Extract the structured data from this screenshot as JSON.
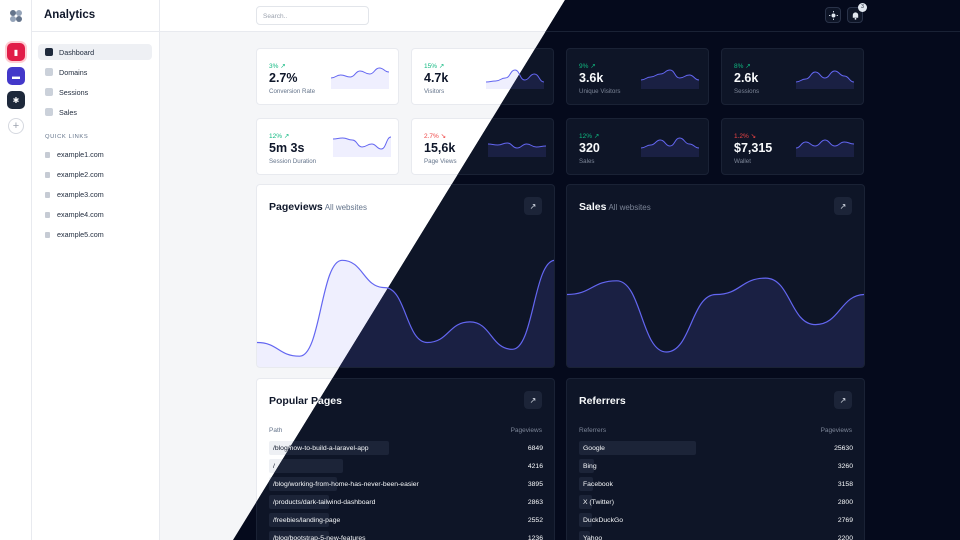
{
  "app": {
    "title": "Analytics"
  },
  "header": {
    "search_placeholder": "Search..",
    "notification_count": "3"
  },
  "rail": {
    "apps": [
      {
        "icon": "bar-chart-icon",
        "color": "#e11d48"
      },
      {
        "icon": "cart-icon",
        "color": "#4338ca"
      },
      {
        "icon": "gear-icon",
        "color": "#1e293b"
      }
    ]
  },
  "sidebar": {
    "items": [
      {
        "label": "Dashboard",
        "icon": "cube-icon",
        "active": true
      },
      {
        "label": "Domains",
        "icon": "globe-icon"
      },
      {
        "label": "Sessions",
        "icon": "arrows-icon"
      },
      {
        "label": "Sales",
        "icon": "table-icon"
      }
    ],
    "quick_links_title": "QUICK LINKS",
    "quick_links": [
      "example1.com",
      "example2.com",
      "example3.com",
      "example4.com",
      "example5.com"
    ]
  },
  "stats": [
    {
      "delta": "3%",
      "dir": "up",
      "value": "2.7%",
      "label": "Conversion Rate",
      "trend": [
        0.4,
        0.55,
        0.45,
        0.75,
        0.6,
        0.9,
        0.7
      ]
    },
    {
      "delta": "15%",
      "dir": "up",
      "value": "4.7k",
      "label": "Visitors",
      "trend": [
        0.2,
        0.25,
        0.4,
        0.8,
        0.3,
        0.6,
        0.2
      ]
    },
    {
      "delta": "9%",
      "dir": "up",
      "value": "3.6k",
      "label": "Unique Visitors",
      "trend": [
        0.3,
        0.45,
        0.6,
        0.8,
        0.4,
        0.55,
        0.3
      ]
    },
    {
      "delta": "8%",
      "dir": "up",
      "value": "2.6k",
      "label": "Sessions",
      "trend": [
        0.2,
        0.35,
        0.7,
        0.4,
        0.75,
        0.5,
        0.2
      ]
    },
    {
      "delta": "12%",
      "dir": "up",
      "value": "5m 3s",
      "label": "Session Duration",
      "trend": [
        0.75,
        0.8,
        0.7,
        0.35,
        0.5,
        0.25,
        0.85
      ]
    },
    {
      "delta": "2.7%",
      "dir": "down",
      "value": "15,6k",
      "label": "Page Views",
      "trend": [
        0.5,
        0.45,
        0.55,
        0.3,
        0.5,
        0.35,
        0.4
      ]
    },
    {
      "delta": "12%",
      "dir": "up",
      "value": "320",
      "label": "Sales",
      "trend": [
        0.3,
        0.45,
        0.7,
        0.4,
        0.8,
        0.5,
        0.3
      ]
    },
    {
      "delta": "1.2%",
      "dir": "down",
      "value": "$7,315",
      "label": "Wallet",
      "trend": [
        0.3,
        0.6,
        0.4,
        0.7,
        0.4,
        0.6,
        0.5
      ]
    }
  ],
  "pageviews": {
    "title": "Pageviews",
    "subtitle": "All websites",
    "trend": [
      0.15,
      0.05,
      0.75,
      0.55,
      0.15,
      0.3,
      0.1,
      0.75
    ]
  },
  "sales": {
    "title": "Sales",
    "subtitle": "All websites",
    "trend": [
      0.5,
      0.6,
      0.08,
      0.5,
      0.62,
      0.28,
      0.5
    ]
  },
  "popular_pages": {
    "title": "Popular Pages",
    "col_path": "Path",
    "col_views": "Pageviews",
    "rows": [
      {
        "path": "/blog/how-to-build-a-laravel-app",
        "views": "6849",
        "share": 1.0
      },
      {
        "path": "/",
        "views": "4216",
        "share": 0.62
      },
      {
        "path": "/blog/working-from-home-has-never-been-easier",
        "views": "3895",
        "share": 0.57
      },
      {
        "path": "/products/dark-tailwind-dashboard",
        "views": "2863",
        "share": 0.42
      },
      {
        "path": "/freebies/landing-page",
        "views": "2552",
        "share": 0.37
      },
      {
        "path": "/blog/bootstrap-5-new-features",
        "views": "1236",
        "share": 0.18
      }
    ]
  },
  "referrers": {
    "title": "Referrers",
    "col_source": "Referrers",
    "col_views": "Pageviews",
    "rows": [
      {
        "source": "Google",
        "views": "25630",
        "share": 1.0
      },
      {
        "source": "Bing",
        "views": "3260",
        "share": 0.13
      },
      {
        "source": "Facebook",
        "views": "3158",
        "share": 0.12
      },
      {
        "source": "X (Twitter)",
        "views": "2800",
        "share": 0.11
      },
      {
        "source": "DuckDuckGo",
        "views": "2769",
        "share": 0.11
      },
      {
        "source": "Yahoo",
        "views": "2200",
        "share": 0.09
      }
    ]
  },
  "colors": {
    "accent": "#6366f1",
    "up": "#10b981",
    "down": "#ef4444"
  }
}
